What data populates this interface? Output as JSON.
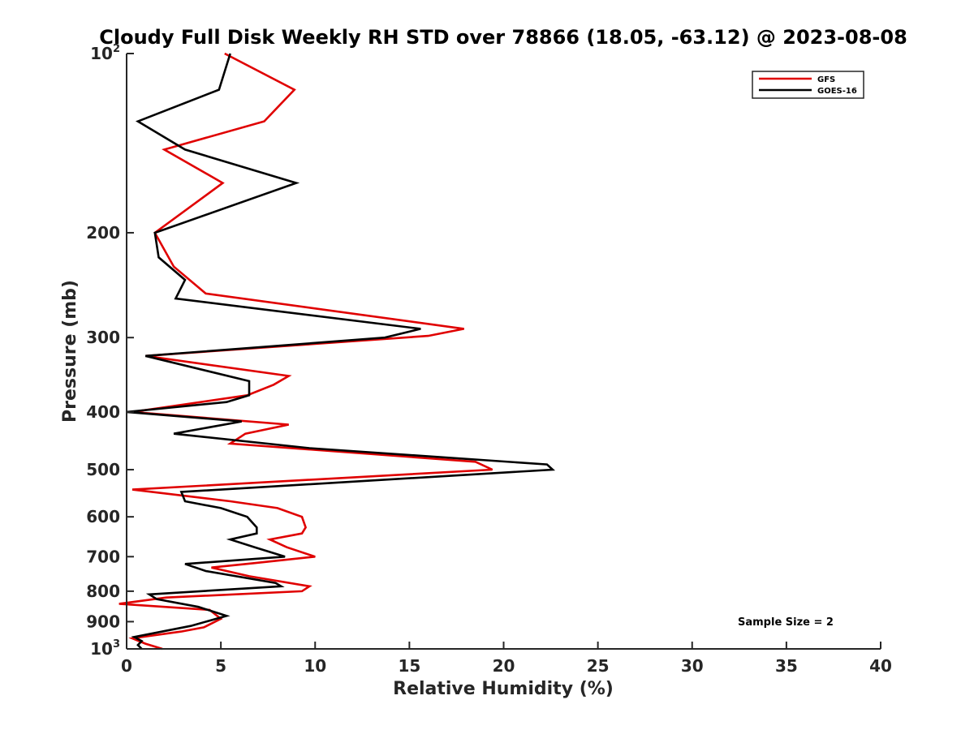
{
  "chart_data": {
    "type": "line",
    "title": "Cloudy Full Disk Weekly RH STD over 78866 (18.05, -63.12) @ 2023-08-08",
    "xlabel": "Relative Humidity (%)",
    "ylabel": "Pressure (mb)",
    "xlim": [
      0,
      40
    ],
    "ylim": [
      100,
      1000
    ],
    "yscale": "log",
    "y_reversed": true,
    "grid": false,
    "legend_position": "top-right",
    "x_ticks": [
      "0",
      "5",
      "10",
      "15",
      "20",
      "25",
      "30",
      "35",
      "40"
    ],
    "x_tick_values": [
      0,
      5,
      10,
      15,
      20,
      25,
      30,
      35,
      40
    ],
    "y_ticks": [
      {
        "value": 100,
        "base": "10",
        "exp": "2"
      },
      {
        "value": 200,
        "label": "200"
      },
      {
        "value": 300,
        "label": "300"
      },
      {
        "value": 400,
        "label": "400"
      },
      {
        "value": 500,
        "label": "500"
      },
      {
        "value": 600,
        "label": "600"
      },
      {
        "value": 700,
        "label": "700"
      },
      {
        "value": 800,
        "label": "800"
      },
      {
        "value": 900,
        "label": "900"
      },
      {
        "value": 1000,
        "base": "10",
        "exp": "3"
      }
    ],
    "annotation": "Sample Size = 2",
    "series": [
      {
        "name": "GFS",
        "color": "#e00000",
        "points": [
          [
            5.2,
            100
          ],
          [
            8.9,
            115
          ],
          [
            7.3,
            130
          ],
          [
            2.0,
            145
          ],
          [
            5.1,
            165
          ],
          [
            1.5,
            200
          ],
          [
            2.5,
            228
          ],
          [
            4.2,
            253
          ],
          [
            17.9,
            290
          ],
          [
            16.0,
            298
          ],
          [
            1.0,
            322
          ],
          [
            8.6,
            348
          ],
          [
            7.8,
            360
          ],
          [
            6.4,
            375
          ],
          [
            0.3,
            400
          ],
          [
            8.6,
            420
          ],
          [
            6.3,
            435
          ],
          [
            5.5,
            452
          ],
          [
            18.5,
            485
          ],
          [
            19.4,
            500
          ],
          [
            0.3,
            540
          ],
          [
            5.5,
            565
          ],
          [
            8.0,
            580
          ],
          [
            9.3,
            600
          ],
          [
            9.5,
            625
          ],
          [
            9.3,
            640
          ],
          [
            7.6,
            655
          ],
          [
            8.5,
            675
          ],
          [
            10.0,
            700
          ],
          [
            6.7,
            718
          ],
          [
            4.5,
            730
          ],
          [
            6.5,
            755
          ],
          [
            9.7,
            785
          ],
          [
            9.3,
            800
          ],
          [
            2.1,
            820
          ],
          [
            -0.4,
            840
          ],
          [
            4.4,
            860
          ],
          [
            5.0,
            890
          ],
          [
            4.1,
            920
          ],
          [
            2.9,
            935
          ],
          [
            0.3,
            960
          ],
          [
            1.0,
            980
          ],
          [
            1.9,
            1000
          ]
        ]
      },
      {
        "name": "GOES-16",
        "color": "#000000",
        "points": [
          [
            5.5,
            100
          ],
          [
            4.9,
            115
          ],
          [
            0.6,
            130
          ],
          [
            3.1,
            145
          ],
          [
            9.0,
            165
          ],
          [
            1.5,
            200
          ],
          [
            1.7,
            220
          ],
          [
            3.1,
            240
          ],
          [
            2.6,
            258
          ],
          [
            15.6,
            290
          ],
          [
            13.7,
            300
          ],
          [
            1.0,
            322
          ],
          [
            6.5,
            355
          ],
          [
            6.5,
            375
          ],
          [
            5.3,
            385
          ],
          [
            0.0,
            400
          ],
          [
            6.1,
            415
          ],
          [
            2.5,
            435
          ],
          [
            9.7,
            460
          ],
          [
            22.3,
            490
          ],
          [
            22.6,
            500
          ],
          [
            2.9,
            545
          ],
          [
            3.1,
            565
          ],
          [
            5.0,
            580
          ],
          [
            6.4,
            600
          ],
          [
            6.9,
            625
          ],
          [
            6.9,
            640
          ],
          [
            5.5,
            655
          ],
          [
            6.8,
            675
          ],
          [
            8.4,
            700
          ],
          [
            3.1,
            720
          ],
          [
            4.2,
            740
          ],
          [
            7.9,
            775
          ],
          [
            8.2,
            785
          ],
          [
            1.2,
            810
          ],
          [
            1.6,
            825
          ],
          [
            3.8,
            850
          ],
          [
            5.3,
            880
          ],
          [
            3.4,
            915
          ],
          [
            0.4,
            955
          ],
          [
            0.8,
            970
          ],
          [
            0.6,
            985
          ],
          [
            0.8,
            1000
          ]
        ]
      }
    ]
  }
}
